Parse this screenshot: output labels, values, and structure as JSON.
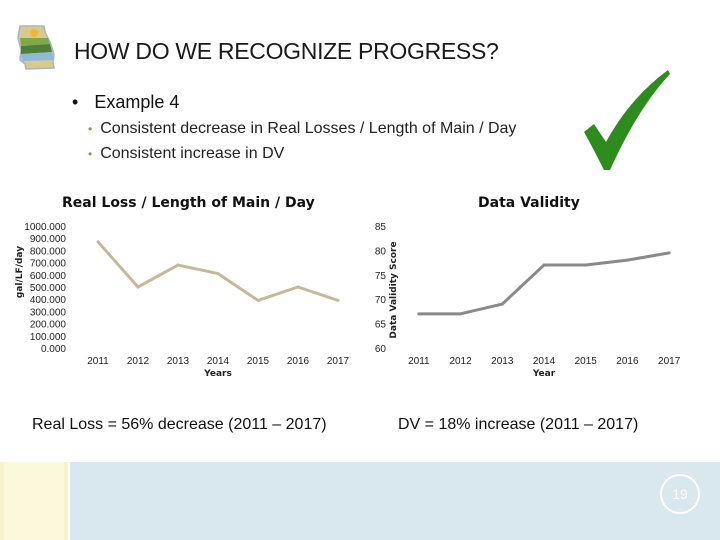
{
  "header": {
    "title": "HOW DO WE RECOGNIZE PROGRESS?"
  },
  "content": {
    "bullet": "Example 4",
    "subbullets": [
      "Consistent decrease in Real Losses / Length of Main / Day",
      "Consistent increase in DV"
    ]
  },
  "captions": {
    "left": "Real Loss = 56% decrease (2011 – 2017)",
    "right": "DV = 18% increase (2011 – 2017)"
  },
  "footer": {
    "page_number": "19"
  },
  "colors": {
    "left_line": "#c8b89a",
    "right_line": "#8a8a8a",
    "check": "#2e8b1e",
    "footer_bar": "#d8e8ee"
  },
  "chart_data": [
    {
      "type": "line",
      "title": "Real Loss / Length of Main / Day",
      "xlabel": "Years",
      "ylabel": "gal/LF/day",
      "categories": [
        "2011",
        "2012",
        "2013",
        "2014",
        "2015",
        "2016",
        "2017"
      ],
      "values": [
        870,
        500,
        680,
        610,
        390,
        500,
        390
      ],
      "ylim": [
        0,
        1000
      ],
      "yticks": [
        "0.000",
        "100.000",
        "200.000",
        "300.000",
        "400.000",
        "500.000",
        "600.000",
        "700.000",
        "800.000",
        "900.000",
        "1000.000"
      ],
      "ytick_values": [
        0,
        100,
        200,
        300,
        400,
        500,
        600,
        700,
        800,
        900,
        1000
      ]
    },
    {
      "type": "line",
      "title": "Data Validity",
      "xlabel": "Year",
      "ylabel": "Data Validity Score",
      "categories": [
        "2011",
        "2012",
        "2013",
        "2014",
        "2015",
        "2016",
        "2017"
      ],
      "values": [
        67,
        67,
        69,
        77,
        77,
        78,
        79.5
      ],
      "ylim": [
        60,
        85
      ],
      "yticks": [
        "60",
        "65",
        "70",
        "75",
        "80",
        "85"
      ],
      "ytick_values": [
        60,
        65,
        70,
        75,
        80,
        85
      ]
    }
  ]
}
